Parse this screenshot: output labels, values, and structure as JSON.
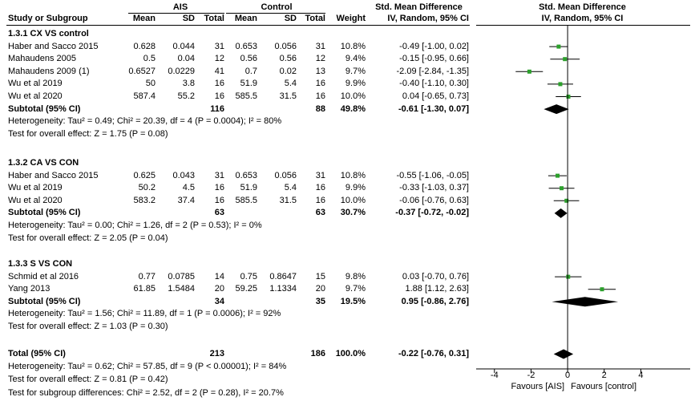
{
  "header": {
    "group1": "AIS",
    "group2": "Control",
    "smd_title": "Std. Mean Difference",
    "plot_title": "Std. Mean Difference",
    "col_study": "Study or Subgroup",
    "col_mean1": "Mean",
    "col_sd1": "SD",
    "col_total1": "Total",
    "col_mean2": "Mean",
    "col_sd2": "SD",
    "col_total2": "Total",
    "col_weight": "Weight",
    "col_ci": "IV, Random, 95% CI",
    "plot_ci": "IV, Random, 95% CI"
  },
  "subgroups": [
    {
      "title": "1.3.1 CX VS control",
      "studies": [
        {
          "name": "Haber and Sacco 2015",
          "m1": "0.628",
          "sd1": "0.044",
          "n1": "31",
          "m2": "0.653",
          "sd2": "0.056",
          "n2": "31",
          "w": "10.8%",
          "ci": "-0.49 [-1.00, 0.02]",
          "est": -0.49,
          "lo": -1.0,
          "hi": 0.02
        },
        {
          "name": "Mahaudens 2005",
          "m1": "0.5",
          "sd1": "0.04",
          "n1": "12",
          "m2": "0.56",
          "sd2": "0.56",
          "n2": "12",
          "w": "9.4%",
          "ci": "-0.15 [-0.95, 0.66]",
          "est": -0.15,
          "lo": -0.95,
          "hi": 0.66
        },
        {
          "name": "Mahaudens 2009 (1)",
          "m1": "0.6527",
          "sd1": "0.0229",
          "n1": "41",
          "m2": "0.7",
          "sd2": "0.02",
          "n2": "13",
          "w": "9.7%",
          "ci": "-2.09 [-2.84, -1.35]",
          "est": -2.09,
          "lo": -2.84,
          "hi": -1.35
        },
        {
          "name": "Wu et al 2019",
          "m1": "50",
          "sd1": "3.8",
          "n1": "16",
          "m2": "51.9",
          "sd2": "5.4",
          "n2": "16",
          "w": "9.9%",
          "ci": "-0.40 [-1.10, 0.30]",
          "est": -0.4,
          "lo": -1.1,
          "hi": 0.3
        },
        {
          "name": "Wu et al 2020",
          "m1": "587.4",
          "sd1": "55.2",
          "n1": "16",
          "m2": "585.5",
          "sd2": "31.5",
          "n2": "16",
          "w": "10.0%",
          "ci": "0.04 [-0.65, 0.73]",
          "est": 0.04,
          "lo": -0.65,
          "hi": 0.73
        }
      ],
      "subtotal": {
        "label": "Subtotal (95% CI)",
        "n1": "116",
        "n2": "88",
        "w": "49.8%",
        "ci": "-0.61 [-1.30, 0.07]",
        "est": -0.61,
        "lo": -1.3,
        "hi": 0.07
      },
      "heterogeneity": "Heterogeneity: Tau² = 0.49; Chi² = 20.39, df = 4 (P = 0.0004); I² = 80%",
      "overall": "Test for overall effect: Z = 1.75 (P = 0.08)"
    },
    {
      "title": "1.3.2 CA VS CON",
      "studies": [
        {
          "name": "Haber and Sacco 2015",
          "m1": "0.625",
          "sd1": "0.043",
          "n1": "31",
          "m2": "0.653",
          "sd2": "0.056",
          "n2": "31",
          "w": "10.8%",
          "ci": "-0.55 [-1.06, -0.05]",
          "est": -0.55,
          "lo": -1.06,
          "hi": -0.05
        },
        {
          "name": "Wu et al 2019",
          "m1": "50.2",
          "sd1": "4.5",
          "n1": "16",
          "m2": "51.9",
          "sd2": "5.4",
          "n2": "16",
          "w": "9.9%",
          "ci": "-0.33 [-1.03, 0.37]",
          "est": -0.33,
          "lo": -1.03,
          "hi": 0.37
        },
        {
          "name": "Wu et al 2020",
          "m1": "583.2",
          "sd1": "37.4",
          "n1": "16",
          "m2": "585.5",
          "sd2": "31.5",
          "n2": "16",
          "w": "10.0%",
          "ci": "-0.06 [-0.76, 0.63]",
          "est": -0.06,
          "lo": -0.76,
          "hi": 0.63
        }
      ],
      "subtotal": {
        "label": "Subtotal (95% CI)",
        "n1": "63",
        "n2": "63",
        "w": "30.7%",
        "ci": "-0.37 [-0.72, -0.02]",
        "est": -0.37,
        "lo": -0.72,
        "hi": -0.02
      },
      "heterogeneity": "Heterogeneity: Tau² = 0.00; Chi² = 1.26, df = 2 (P = 0.53); I² = 0%",
      "overall": "Test for overall effect: Z = 2.05 (P = 0.04)"
    },
    {
      "title": "1.3.3 S VS CON",
      "studies": [
        {
          "name": "Schmid et al 2016",
          "m1": "0.77",
          "sd1": "0.0785",
          "n1": "14",
          "m2": "0.75",
          "sd2": "0.8647",
          "n2": "15",
          "w": "9.8%",
          "ci": "0.03 [-0.70, 0.76]",
          "est": 0.03,
          "lo": -0.7,
          "hi": 0.76
        },
        {
          "name": "Yang 2013",
          "m1": "61.85",
          "sd1": "1.5484",
          "n1": "20",
          "m2": "59.25",
          "sd2": "1.1334",
          "n2": "20",
          "w": "9.7%",
          "ci": "1.88 [1.12, 2.63]",
          "est": 1.88,
          "lo": 1.12,
          "hi": 2.63
        }
      ],
      "subtotal": {
        "label": "Subtotal (95% CI)",
        "n1": "34",
        "n2": "35",
        "w": "19.5%",
        "ci": "0.95 [-0.86, 2.76]",
        "est": 0.95,
        "lo": -0.86,
        "hi": 2.76
      },
      "heterogeneity": "Heterogeneity: Tau² = 1.56; Chi² = 11.89, df = 1 (P = 0.0006); I² = 92%",
      "overall": "Test for overall effect: Z = 1.03 (P = 0.30)"
    }
  ],
  "total": {
    "label": "Total (95% CI)",
    "n1": "213",
    "n2": "186",
    "w": "100.0%",
    "ci": "-0.22 [-0.76, 0.31]",
    "est": -0.22,
    "lo": -0.76,
    "hi": 0.31
  },
  "total_heterogeneity": "Heterogeneity: Tau² = 0.62; Chi² = 57.85, df = 9 (P < 0.00001); I² = 84%",
  "total_overall": "Test for overall effect: Z = 0.81 (P = 0.42)",
  "subgroup_diff": "Test for subgroup differences: Chi² = 2.52, df = 2 (P = 0.28), I² = 20.7%",
  "chart_data": {
    "type": "forest",
    "xlim": [
      -5,
      6.7
    ],
    "ticks": [
      "-4",
      "-2",
      "0",
      "2",
      "4"
    ],
    "tick_values": [
      -4,
      -2,
      0,
      2,
      4
    ],
    "favours_left": "Favours [AIS]",
    "favours_right": "Favours [control]",
    "marker_color": "#2ca02c"
  }
}
